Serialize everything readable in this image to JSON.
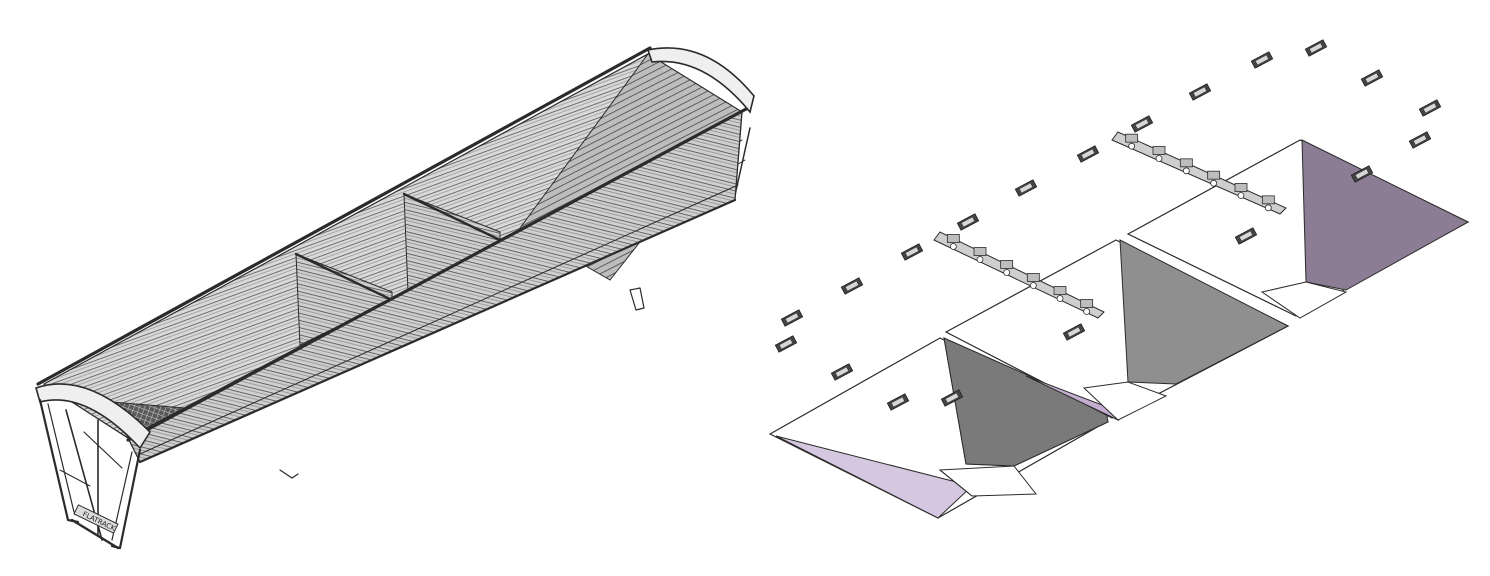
{
  "figure": {
    "views": [
      "assembled-trailer-body",
      "exploded-hopper-panels"
    ]
  },
  "colors": {
    "line": "#2b2b2b",
    "metal_light": "#e3e3e3",
    "metal_mid": "#9a9a9a",
    "metal_dark": "#5f5f5f",
    "panel_grey": "#8f8f8f",
    "panel_dark_grey": "#6d6d6d",
    "panel_purple": "#8c7d94",
    "panel_lavender": "#d5c7df",
    "white": "#ffffff"
  },
  "assembled_view": {
    "stamp_text": "FLATRACK"
  },
  "exploded_view": {
    "hopper_count": 3,
    "clip_count": 20,
    "hinge_bar_count": 2
  }
}
